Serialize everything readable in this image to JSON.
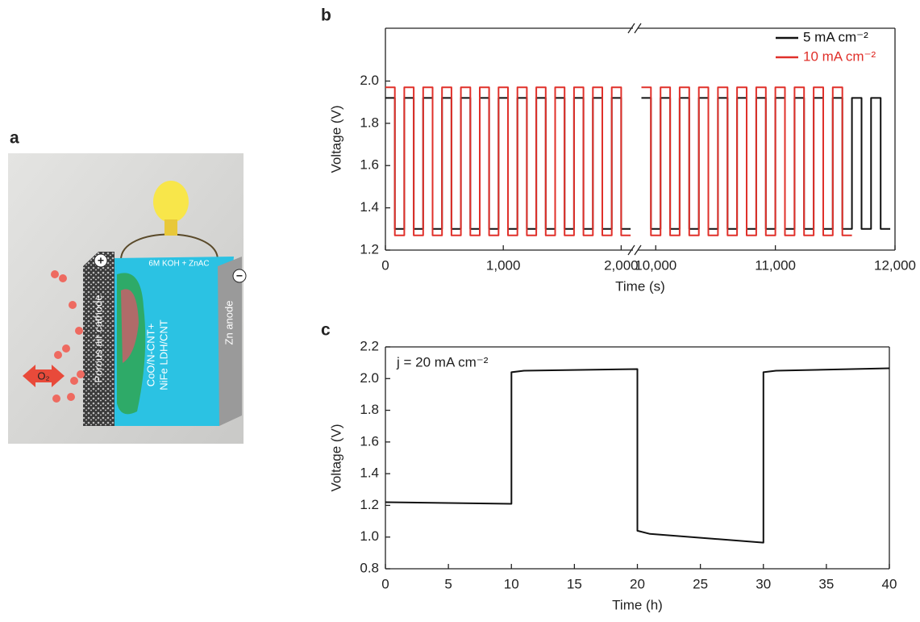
{
  "illustration": {
    "label": "a",
    "electrolyte": "6M KOH + ZnAC",
    "cathode": "Porous air cathode",
    "catalyst": [
      "CoO/N-CNT+",
      "NiFe LDH/CNT"
    ],
    "anode": "Zn anode",
    "gas": "O₂",
    "positive": "+",
    "negative": "−"
  },
  "chart_data": [
    {
      "type": "line",
      "panel": "b",
      "x_label": "Time (s)",
      "y_label": "Voltage (V)",
      "xlim": [
        0,
        12000
      ],
      "xbreak": [
        2100,
        9850
      ],
      "xticks": [
        0,
        {
          "value": 1000,
          "label": "1,000"
        },
        {
          "value": 2000,
          "label": "2,000"
        },
        {
          "value": 10000,
          "label": "10,000"
        },
        {
          "value": 11000,
          "label": "11,000"
        },
        {
          "value": 12000,
          "label": "12,000"
        }
      ],
      "ylim": [
        1.2,
        2.25
      ],
      "yticks": [
        1.2,
        1.4,
        1.6,
        1.8,
        {
          "value": 2,
          "label": "2.0"
        }
      ],
      "legend": "upper right",
      "series": [
        {
          "name": "5 mA cm⁻²",
          "color": "#111111",
          "x": [
            0,
            80,
            80,
            160,
            160,
            240,
            240,
            320,
            320,
            400,
            400,
            480,
            480,
            560,
            560,
            640,
            640,
            720,
            720,
            800,
            800,
            880,
            880,
            960,
            960,
            1040,
            1040,
            1120,
            1120,
            1200,
            1200,
            1280,
            1280,
            1360,
            1360,
            1440,
            1440,
            1520,
            1520,
            1600,
            1600,
            1680,
            1680,
            1760,
            1760,
            1840,
            1840,
            1920,
            1920,
            2000,
            2000,
            2080,
            null,
            9880,
            9960,
            9960,
            10040,
            10040,
            10120,
            10120,
            10200,
            10200,
            10280,
            10280,
            10360,
            10360,
            10440,
            10440,
            10520,
            10520,
            10600,
            10600,
            10680,
            10680,
            10760,
            10760,
            10840,
            10840,
            10920,
            10920,
            11000,
            11000,
            11080,
            11080,
            11160,
            11160,
            11240,
            11240,
            11320,
            11320,
            11400,
            11400,
            11480,
            11480,
            11560,
            11560,
            11640,
            11640,
            11720,
            11720,
            11800,
            11800,
            11880,
            11880,
            11960
          ],
          "values": [
            1.92,
            1.92,
            1.3,
            1.3,
            1.92,
            1.92,
            1.3,
            1.3,
            1.92,
            1.92,
            1.3,
            1.3,
            1.92,
            1.92,
            1.3,
            1.3,
            1.92,
            1.92,
            1.3,
            1.3,
            1.92,
            1.92,
            1.3,
            1.3,
            1.92,
            1.92,
            1.3,
            1.3,
            1.92,
            1.92,
            1.3,
            1.3,
            1.92,
            1.92,
            1.3,
            1.3,
            1.92,
            1.92,
            1.3,
            1.3,
            1.92,
            1.92,
            1.3,
            1.3,
            1.92,
            1.92,
            1.3,
            1.3,
            1.92,
            1.92,
            1.3,
            1.3,
            null,
            1.92,
            1.92,
            1.3,
            1.3,
            1.92,
            1.92,
            1.3,
            1.3,
            1.92,
            1.92,
            1.3,
            1.3,
            1.92,
            1.92,
            1.3,
            1.3,
            1.92,
            1.92,
            1.3,
            1.3,
            1.92,
            1.92,
            1.3,
            1.3,
            1.92,
            1.92,
            1.3,
            1.3,
            1.92,
            1.92,
            1.3,
            1.3,
            1.92,
            1.92,
            1.3,
            1.3,
            1.92,
            1.92,
            1.3,
            1.3,
            1.92,
            1.92,
            1.3,
            1.3,
            1.92,
            1.92,
            1.3,
            1.3,
            1.92,
            1.92,
            1.3,
            1.3
          ]
        },
        {
          "name": "10 mA cm⁻²",
          "color": "#e0302a",
          "x": [
            0,
            80,
            80,
            160,
            160,
            240,
            240,
            320,
            320,
            400,
            400,
            480,
            480,
            560,
            560,
            640,
            640,
            720,
            720,
            800,
            800,
            880,
            880,
            960,
            960,
            1040,
            1040,
            1120,
            1120,
            1200,
            1200,
            1280,
            1280,
            1360,
            1360,
            1440,
            1440,
            1520,
            1520,
            1600,
            1600,
            1680,
            1680,
            1760,
            1760,
            1840,
            1840,
            1920,
            1920,
            2000,
            2000,
            2080,
            null,
            9880,
            9960,
            9960,
            10040,
            10040,
            10120,
            10120,
            10200,
            10200,
            10280,
            10280,
            10360,
            10360,
            10440,
            10440,
            10520,
            10520,
            10600,
            10600,
            10680,
            10680,
            10760,
            10760,
            10840,
            10840,
            10920,
            10920,
            11000,
            11000,
            11080,
            11080,
            11160,
            11160,
            11240,
            11240,
            11320,
            11320,
            11400,
            11400,
            11480,
            11480,
            11560,
            11560,
            11640
          ],
          "values": [
            1.97,
            1.97,
            1.27,
            1.27,
            1.97,
            1.97,
            1.27,
            1.27,
            1.97,
            1.97,
            1.27,
            1.27,
            1.97,
            1.97,
            1.27,
            1.27,
            1.97,
            1.97,
            1.27,
            1.27,
            1.97,
            1.97,
            1.27,
            1.27,
            1.97,
            1.97,
            1.27,
            1.27,
            1.97,
            1.97,
            1.27,
            1.27,
            1.97,
            1.97,
            1.27,
            1.27,
            1.97,
            1.97,
            1.27,
            1.27,
            1.97,
            1.97,
            1.27,
            1.27,
            1.97,
            1.97,
            1.27,
            1.27,
            1.97,
            1.97,
            1.27,
            1.27,
            null,
            1.97,
            1.97,
            1.27,
            1.27,
            1.97,
            1.97,
            1.27,
            1.27,
            1.97,
            1.97,
            1.27,
            1.27,
            1.97,
            1.97,
            1.27,
            1.27,
            1.97,
            1.97,
            1.27,
            1.27,
            1.97,
            1.97,
            1.27,
            1.27,
            1.97,
            1.97,
            1.27,
            1.27,
            1.97,
            1.97,
            1.27,
            1.27,
            1.97,
            1.97,
            1.27,
            1.27,
            1.97,
            1.97,
            1.27,
            1.27,
            1.97,
            1.97,
            1.27,
            1.27
          ]
        }
      ]
    },
    {
      "type": "line",
      "panel": "c",
      "x_label": "Time (h)",
      "y_label": "Voltage (V)",
      "annotation": "j = 20 mA cm⁻²",
      "xlim": [
        0,
        40
      ],
      "xticks": [
        0,
        5,
        10,
        15,
        20,
        25,
        30,
        35,
        40
      ],
      "ylim": [
        0.8,
        2.2
      ],
      "yticks": [
        0.8,
        {
          "value": 1,
          "label": "1.0"
        },
        1.2,
        1.4,
        1.6,
        1.8,
        {
          "value": 2,
          "label": "2.0"
        },
        2.2
      ],
      "series": [
        {
          "name": "j = 20 mA cm⁻²",
          "color": "#111111",
          "x": [
            0,
            10,
            10,
            11,
            20,
            20,
            21,
            30,
            30,
            31,
            40
          ],
          "values": [
            1.22,
            1.21,
            2.04,
            2.05,
            2.06,
            1.04,
            1.02,
            0.965,
            2.04,
            2.05,
            2.065
          ]
        }
      ]
    }
  ]
}
